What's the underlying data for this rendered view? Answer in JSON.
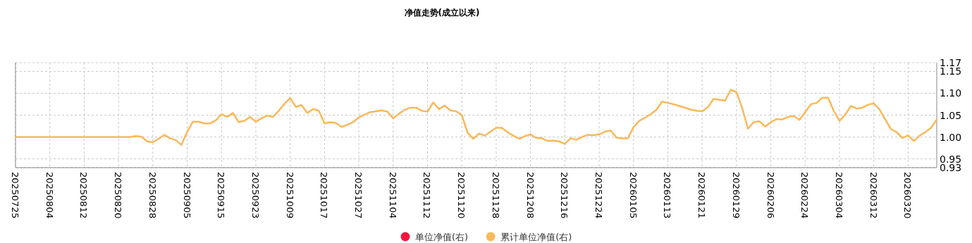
{
  "chart_data": {
    "type": "line",
    "title": "净值走势(成立以来)",
    "categories": [
      "20250725",
      null,
      null,
      null,
      null,
      null,
      "20250804",
      null,
      null,
      null,
      null,
      null,
      "20250812",
      null,
      null,
      null,
      null,
      null,
      "20250820",
      null,
      null,
      null,
      null,
      null,
      "20250828",
      null,
      null,
      null,
      null,
      null,
      "20250905",
      null,
      null,
      null,
      null,
      null,
      "20250915",
      null,
      null,
      null,
      null,
      null,
      "20250923",
      null,
      null,
      null,
      null,
      null,
      "20251009",
      null,
      null,
      null,
      null,
      null,
      "20251017",
      null,
      null,
      null,
      null,
      null,
      "20251027",
      null,
      null,
      null,
      null,
      null,
      "20251104",
      null,
      null,
      null,
      null,
      null,
      "20251112",
      null,
      null,
      null,
      null,
      null,
      "20251120",
      null,
      null,
      null,
      null,
      null,
      "20251128",
      null,
      null,
      null,
      null,
      null,
      "20251208",
      null,
      null,
      null,
      null,
      null,
      "20251216",
      null,
      null,
      null,
      null,
      null,
      "20251224",
      null,
      null,
      null,
      null,
      null,
      "20260105",
      null,
      null,
      null,
      null,
      null,
      "20260113",
      null,
      null,
      null,
      null,
      null,
      "20260121",
      null,
      null,
      null,
      null,
      null,
      "20260129",
      null,
      null,
      null,
      null,
      null,
      "20260206",
      null,
      null,
      null,
      null,
      null,
      "20260224",
      null,
      null,
      null,
      null,
      null,
      "20260304",
      null,
      null,
      null,
      null,
      null,
      "20260312",
      null,
      null,
      null,
      null,
      null,
      "20260320",
      null,
      null,
      null,
      null,
      null
    ],
    "series": [
      {
        "name": "单位净值(右)",
        "color": "#f5163b",
        "axis": "y2",
        "values": [
          null,
          null,
          null,
          null,
          null,
          null,
          null,
          null,
          null,
          null,
          null,
          null,
          null,
          null,
          null,
          null,
          null,
          null,
          null,
          null,
          null,
          null,
          null,
          null,
          null,
          null,
          null,
          null,
          null,
          null,
          null,
          null,
          null,
          null,
          null,
          null,
          null,
          null,
          null,
          null,
          null,
          null,
          null,
          null,
          null,
          null,
          null,
          null,
          null,
          null,
          null,
          null,
          null,
          null,
          null,
          null,
          null,
          null,
          null,
          null,
          null,
          null,
          null,
          null,
          null,
          null,
          null,
          null,
          null,
          null,
          null,
          null,
          null,
          null,
          null,
          null,
          null,
          null,
          null,
          null,
          null,
          null,
          null,
          null,
          null,
          null,
          null,
          null,
          null,
          null,
          null,
          null,
          null,
          null,
          null,
          null,
          null,
          null,
          null,
          null,
          null,
          null,
          null,
          null,
          null,
          null,
          null,
          null,
          null,
          null,
          null,
          null,
          null,
          null,
          null,
          null,
          null,
          null,
          null,
          null,
          null,
          null,
          null,
          null,
          null,
          null,
          null,
          null,
          null,
          null,
          null,
          null,
          null,
          null,
          null,
          null,
          null,
          null,
          null,
          null,
          null,
          null,
          null,
          null,
          null,
          null,
          null,
          null,
          null,
          null,
          null,
          null,
          null,
          null,
          null,
          null,
          null,
          null,
          null,
          null,
          null,
          null
        ]
      },
      {
        "name": "累计单位净值(右)",
        "color": "#f9b95a",
        "axis": "y2",
        "values": [
          1.0,
          1.0,
          1.0,
          1.0,
          1.0,
          1.0,
          1.0,
          1.0,
          1.0,
          1.0,
          1.0,
          1.0,
          1.0,
          1.0,
          1.0,
          1.0,
          1.0,
          1.0,
          1.0,
          1.0,
          1.0,
          1.002,
          1.001,
          0.99,
          0.988,
          0.996,
          1.005,
          0.997,
          0.993,
          0.982,
          1.012,
          1.035,
          1.035,
          1.031,
          1.031,
          1.038,
          1.052,
          1.046,
          1.055,
          1.034,
          1.037,
          1.046,
          1.035,
          1.043,
          1.049,
          1.046,
          1.06,
          1.076,
          1.089,
          1.069,
          1.073,
          1.055,
          1.064,
          1.06,
          1.031,
          1.034,
          1.032,
          1.023,
          1.028,
          1.034,
          1.045,
          1.051,
          1.057,
          1.059,
          1.061,
          1.058,
          1.043,
          1.053,
          1.062,
          1.067,
          1.067,
          1.06,
          1.058,
          1.079,
          1.064,
          1.072,
          1.061,
          1.059,
          1.05,
          1.01,
          0.996,
          1.008,
          1.003,
          1.012,
          1.021,
          1.021,
          1.011,
          1.003,
          0.996,
          1.002,
          1.006,
          0.998,
          0.997,
          0.991,
          0.992,
          0.99,
          0.984,
          0.997,
          0.994,
          1.0,
          1.005,
          1.004,
          1.006,
          1.012,
          1.015,
          0.999,
          0.997,
          0.997,
          1.022,
          1.037,
          1.044,
          1.052,
          1.062,
          1.081,
          1.078,
          1.075,
          1.071,
          1.067,
          1.063,
          1.06,
          1.059,
          1.068,
          1.087,
          1.085,
          1.083,
          1.108,
          1.103,
          1.066,
          1.019,
          1.034,
          1.036,
          1.024,
          1.034,
          1.041,
          1.04,
          1.046,
          1.048,
          1.039,
          1.057,
          1.075,
          1.078,
          1.09,
          1.09,
          1.06,
          1.037,
          1.051,
          1.071,
          1.065,
          1.067,
          1.074,
          1.077,
          1.063,
          1.04,
          1.018,
          1.011,
          0.998,
          1.004,
          0.991,
          1.003,
          1.011,
          1.021,
          1.04
        ]
      }
    ],
    "y2lim": [
      0.93,
      1.17
    ],
    "y2ticks": [
      0.93,
      0.95,
      {
        "value": 1.0,
        "label": "1.00"
      },
      1.05,
      {
        "value": 1.1,
        "label": "1.10"
      },
      1.15,
      1.17
    ],
    "grid": true,
    "legend": "bottom",
    "marker": "none"
  }
}
